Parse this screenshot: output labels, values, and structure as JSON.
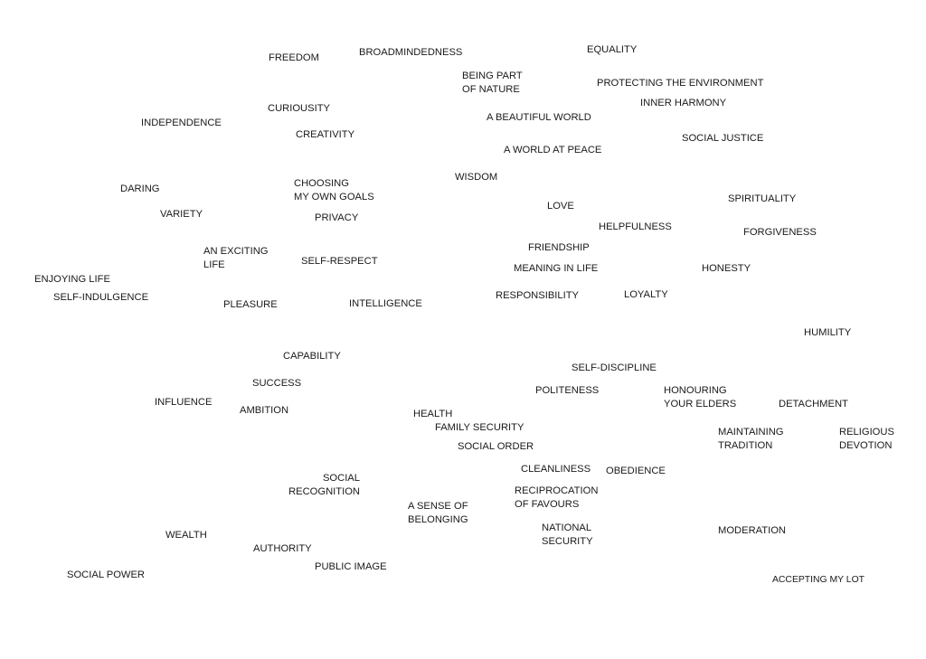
{
  "labels": [
    [
      "FREEDOM"
    ],
    [
      "BROADMINDEDNESS"
    ],
    [
      "EQUALITY"
    ],
    [
      "BEING PART",
      "OF NATURE"
    ],
    [
      "PROTECTING THE ENVIRONMENT"
    ],
    [
      "INNER HARMONY"
    ],
    [
      "CURIOUSITY"
    ],
    [
      "A BEAUTIFUL WORLD"
    ],
    [
      "INDEPENDENCE"
    ],
    [
      "CREATIVITY"
    ],
    [
      "SOCIAL JUSTICE"
    ],
    [
      "A WORLD AT PEACE"
    ],
    [
      "WISDOM"
    ],
    [
      "CHOOSING",
      "MY OWN GOALS"
    ],
    [
      "DARING"
    ],
    [
      "SPIRITUALITY"
    ],
    [
      "LOVE"
    ],
    [
      "VARIETY"
    ],
    [
      "PRIVACY"
    ],
    [
      "HELPFULNESS"
    ],
    [
      "FORGIVENESS"
    ],
    [
      "FRIENDSHIP"
    ],
    [
      "AN EXCITING",
      "LIFE"
    ],
    [
      "SELF-RESPECT"
    ],
    [
      "MEANING IN LIFE"
    ],
    [
      "HONESTY"
    ],
    [
      "ENJOYING LIFE"
    ],
    [
      "SELF-INDULGENCE"
    ],
    [
      "RESPONSIBILITY"
    ],
    [
      "LOYALTY"
    ],
    [
      "PLEASURE"
    ],
    [
      "INTELLIGENCE"
    ],
    [
      "HUMILITY"
    ],
    [
      "CAPABILITY"
    ],
    [
      "SELF-DISCIPLINE"
    ],
    [
      "SUCCESS"
    ],
    [
      "POLITENESS"
    ],
    [
      "HONOURING",
      "YOUR ELDERS"
    ],
    [
      "INFLUENCE"
    ],
    [
      "DETACHMENT"
    ],
    [
      "AMBITION"
    ],
    [
      "HEALTH"
    ],
    [
      "FAMILY SECURITY"
    ],
    [
      "MAINTAINING",
      "TRADITION"
    ],
    [
      "RELIGIOUS",
      "DEVOTION"
    ],
    [
      "SOCIAL ORDER"
    ],
    [
      "CLEANLINESS"
    ],
    [
      "OBEDIENCE"
    ],
    [
      "SOCIAL",
      "RECOGNITION"
    ],
    [
      "RECIPROCATION",
      "OF FAVOURS"
    ],
    [
      "A SENSE OF",
      "BELONGING"
    ],
    [
      "NATIONAL",
      "SECURITY"
    ],
    [
      "MODERATION"
    ],
    [
      "WEALTH"
    ],
    [
      "AUTHORITY"
    ],
    [
      "PUBLIC IMAGE"
    ],
    [
      "SOCIAL POWER"
    ],
    [
      "ACCEPTING MY LOT"
    ]
  ]
}
